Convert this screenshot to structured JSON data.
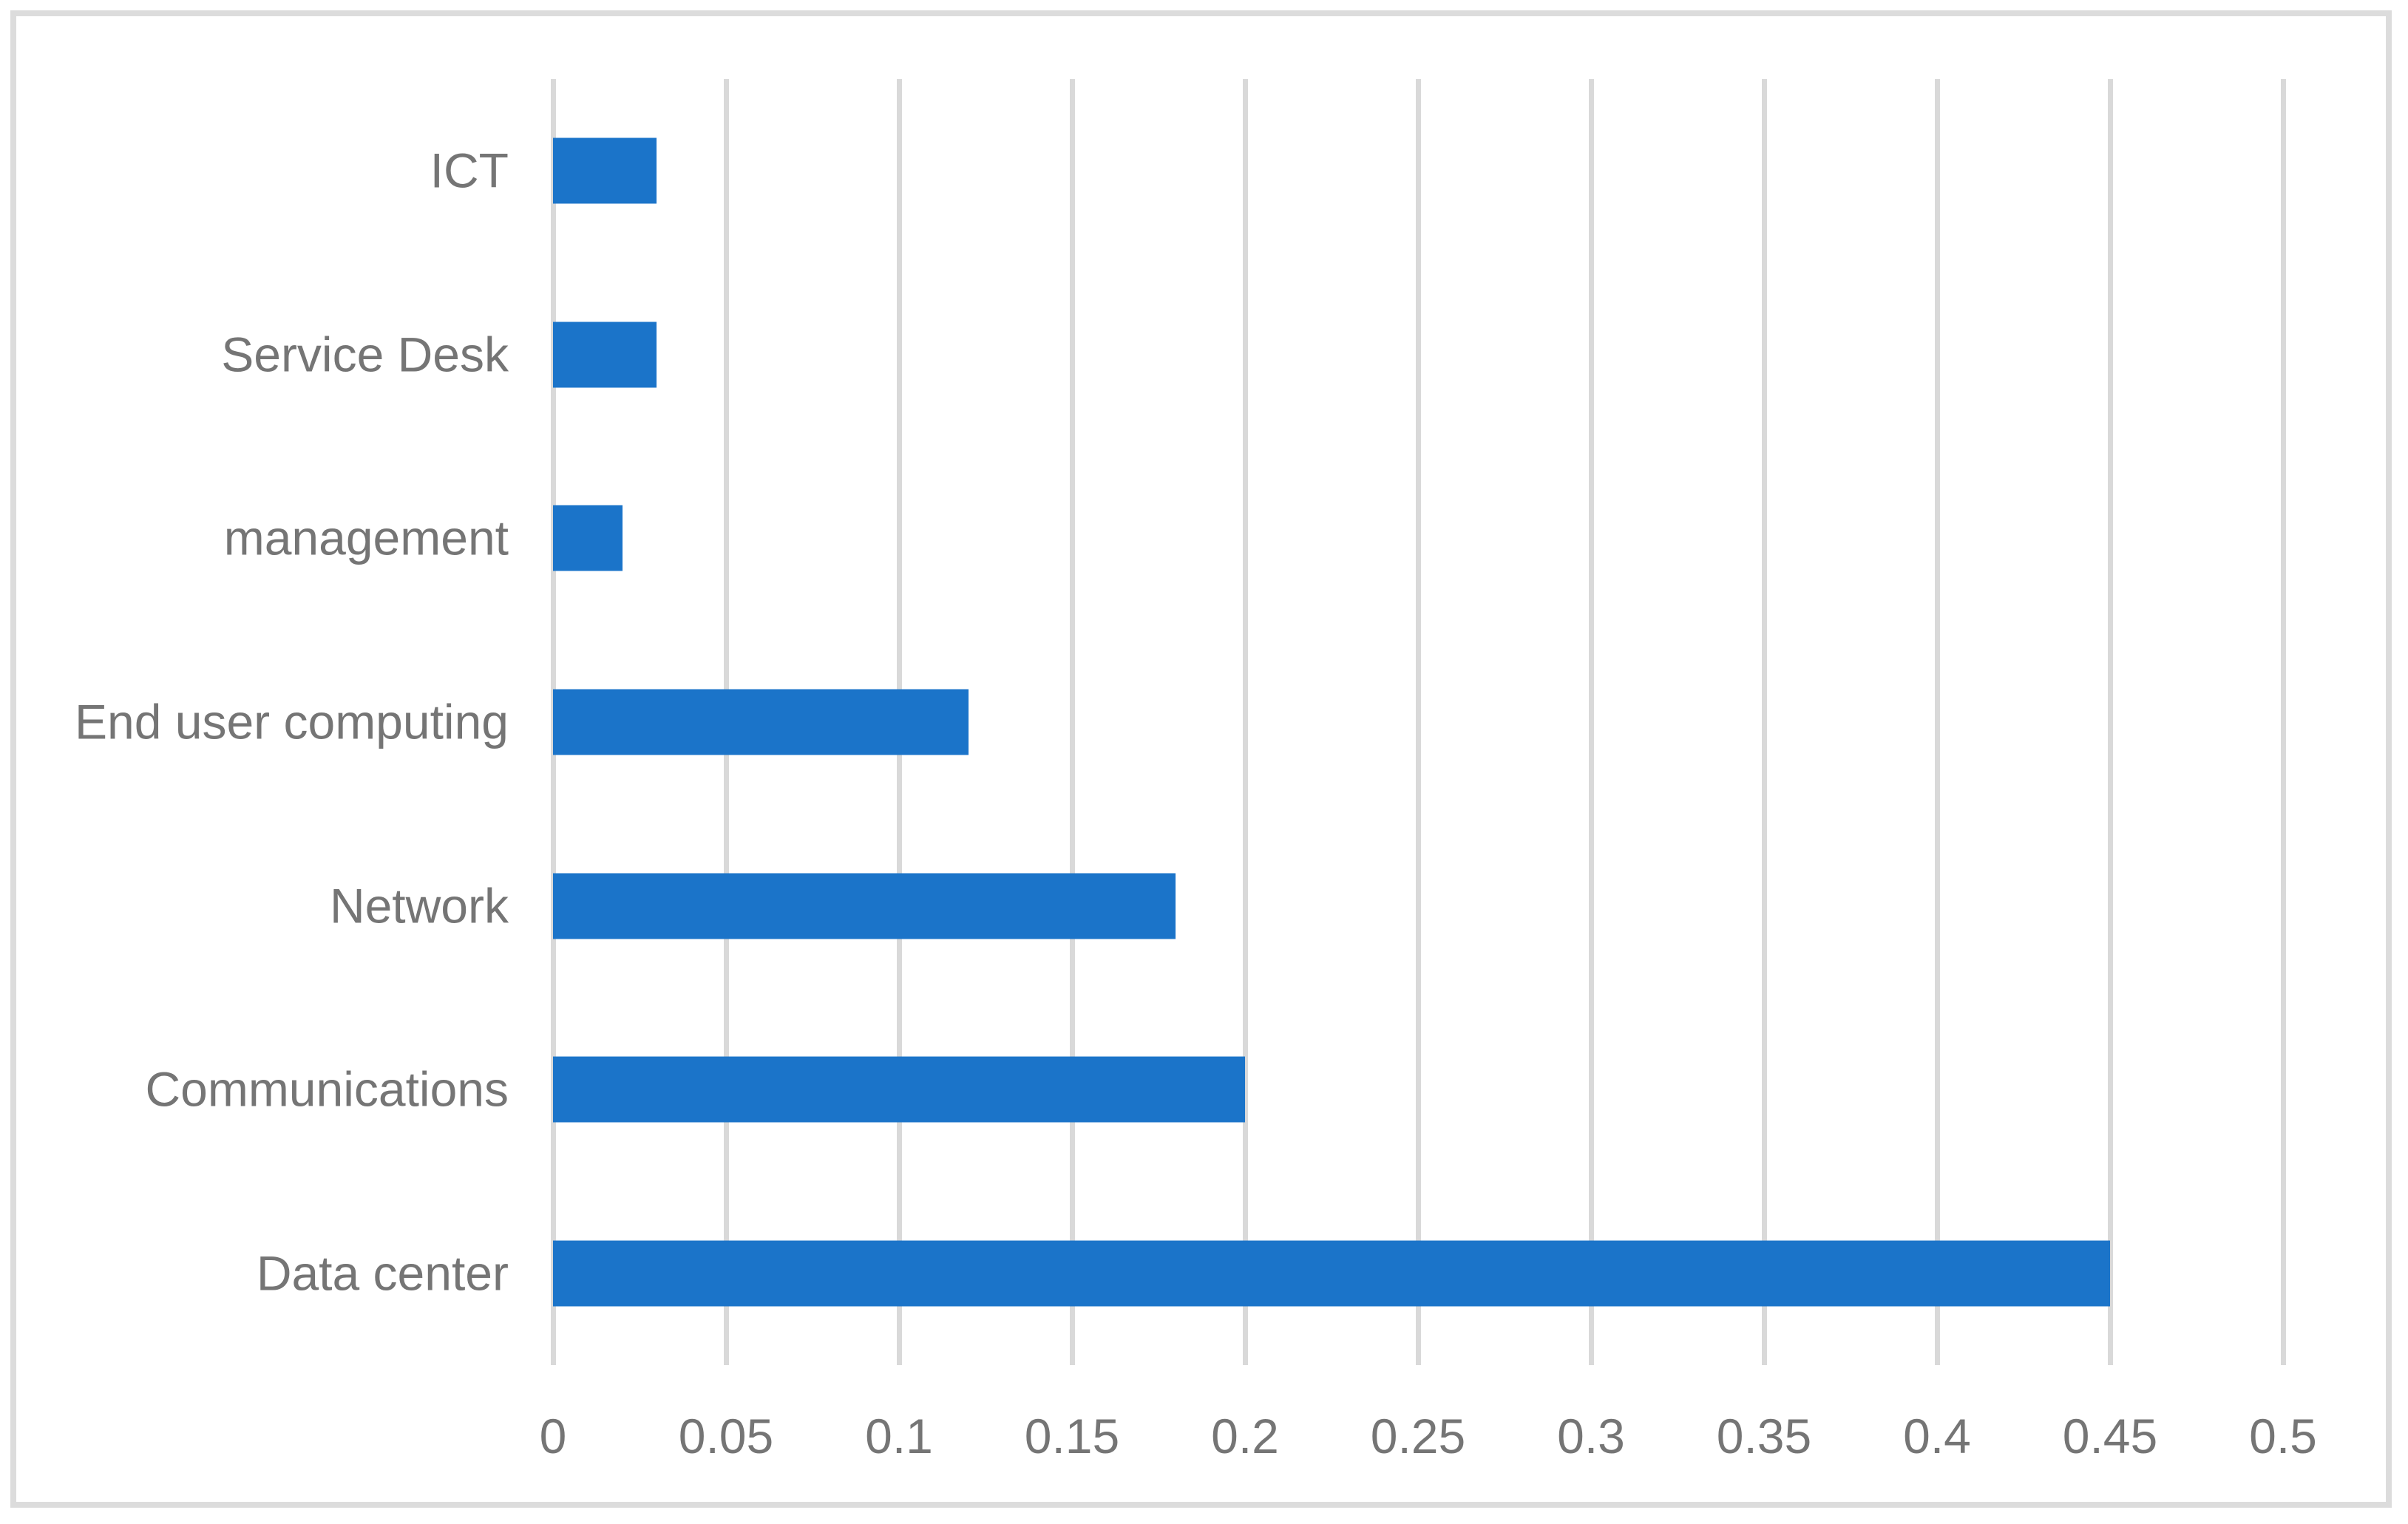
{
  "chart_data": {
    "type": "bar",
    "orientation": "horizontal",
    "title": "",
    "xlabel": "",
    "ylabel": "",
    "categories": [
      "ICT",
      "Service Desk",
      "management",
      "End user computing",
      "Network",
      "Communications",
      "Data center"
    ],
    "values": [
      0.03,
      0.03,
      0.02,
      0.12,
      0.18,
      0.2,
      0.45
    ],
    "xlim": [
      0,
      0.5
    ],
    "xtick_values": [
      0,
      0.05,
      0.1,
      0.15,
      0.2,
      0.25,
      0.3,
      0.35,
      0.4,
      0.45,
      0.5
    ],
    "xtick_labels": [
      "0",
      "0.05",
      "0.1",
      "0.15",
      "0.2",
      "0.25",
      "0.3",
      "0.35",
      "0.4",
      "0.45",
      "0.5"
    ],
    "grid": "vertical-gridlines-on",
    "legend": "none",
    "colors": {
      "bar_fill": "#1B74C9",
      "gridline": "#D9D9D9",
      "figure_border": "#DCDCDC",
      "label_text": "#757575",
      "background": "#FFFFFF"
    }
  }
}
